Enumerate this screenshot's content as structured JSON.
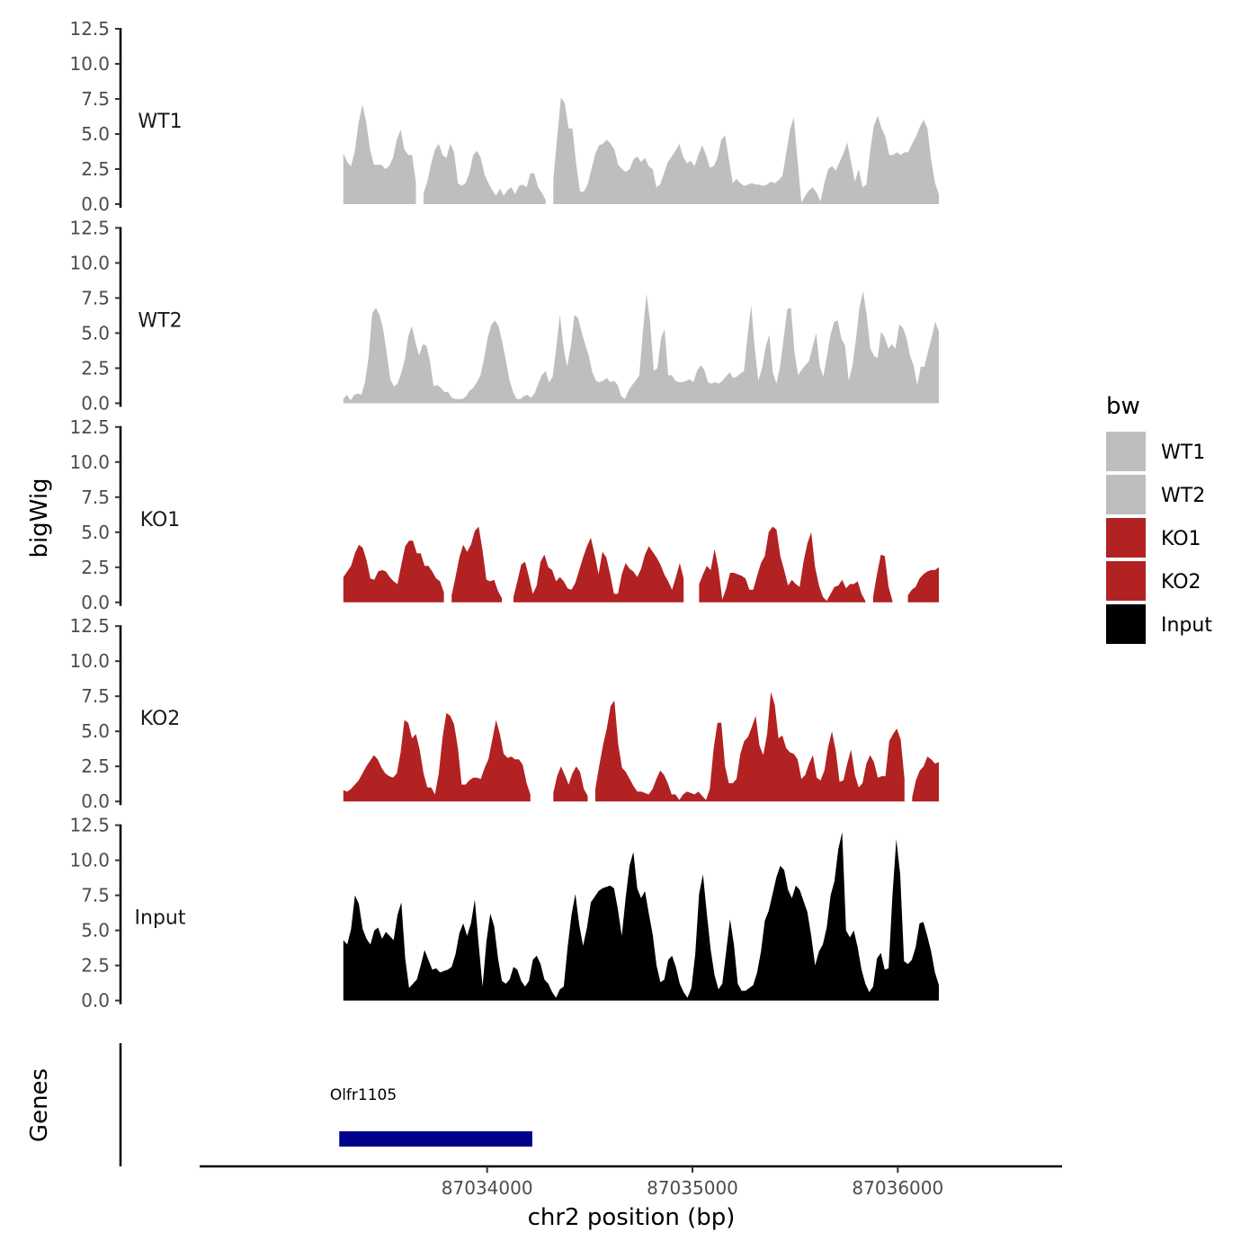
{
  "chart_data": {
    "type": "area",
    "xlabel": "chr2 position (bp)",
    "ylabel": "bigWig",
    "genes_label": "Genes",
    "xlim": [
      87032600,
      87036800
    ],
    "x_ticks": [
      87034000,
      87035000,
      87036000
    ],
    "x_tick_labels": [
      "87034000",
      "87035000",
      "87036000"
    ],
    "ylim": [
      0,
      12.5
    ],
    "y_ticks": [
      0,
      2.5,
      5,
      7.5,
      10,
      12.5
    ],
    "y_tick_labels": [
      "0.0",
      "2.5",
      "5.0",
      "7.5",
      "10.0",
      "12.5"
    ],
    "x_start": 87033300,
    "x_end": 87036200,
    "tracks": [
      {
        "name": "WT1",
        "color": "#bebebe",
        "values": [
          3.6,
          3.0,
          2.7,
          3.8,
          5.8,
          7.1,
          5.8,
          3.9,
          2.8,
          2.8,
          2.8,
          2.5,
          2.7,
          3.3,
          4.6,
          5.3,
          3.9,
          3.5,
          3.5,
          1.5,
          0,
          0.8,
          1.6,
          2.9,
          3.9,
          4.3,
          3.5,
          3.3,
          4.3,
          3.7,
          1.5,
          1.3,
          1.5,
          2.2,
          3.5,
          3.8,
          3.3,
          2.1,
          1.5,
          1.0,
          0.6,
          1.1,
          0.6,
          1.0,
          1.2,
          0.7,
          1.3,
          1.4,
          1.2,
          2.2,
          2.2,
          1.2,
          0.8,
          0.3,
          0,
          1.8,
          4.7,
          7.6,
          7.2,
          5.4,
          5.4,
          2.8,
          0.9,
          0.9,
          1.4,
          2.5,
          3.6,
          4.2,
          4.3,
          4.6,
          4.3,
          3.9,
          2.8,
          2.5,
          2.3,
          2.5,
          3.2,
          3.4,
          3.0,
          3.3,
          2.7,
          2.5,
          1.2,
          1.4,
          2.2,
          3.0,
          3.4,
          3.8,
          4.3,
          3.4,
          2.9,
          3.1,
          2.7,
          3.5,
          4.2,
          3.5,
          2.6,
          2.7,
          3.3,
          4.6,
          4.9,
          3.2,
          1.5,
          1.8,
          1.5,
          1.3,
          1.4,
          1.5,
          1.4,
          1.4,
          1.3,
          1.4,
          1.6,
          1.5,
          1.7,
          2.0,
          3.6,
          5.3,
          6.2,
          3.1,
          0.1,
          0.6,
          1.0,
          1.2,
          0.8,
          0.2,
          1.5,
          2.5,
          2.7,
          2.4,
          3.0,
          3.6,
          4.4,
          3.0,
          1.6,
          2.5,
          1.2,
          1.4,
          3.8,
          5.6,
          6.3,
          5.4,
          4.8,
          3.5,
          3.5,
          3.7,
          3.5,
          3.7,
          3.7,
          4.3,
          4.8,
          5.5,
          6.0,
          5.4,
          3.1,
          1.5,
          0.7
        ]
      },
      {
        "name": "WT2",
        "color": "#bebebe",
        "values": [
          0.3,
          0.6,
          0.2,
          0.6,
          0.7,
          0.6,
          1.5,
          3.3,
          6.4,
          6.8,
          6.3,
          5.3,
          3.6,
          1.7,
          1.2,
          1.4,
          2.1,
          3.1,
          4.8,
          5.5,
          4.3,
          3.4,
          4.2,
          4.1,
          3.0,
          1.2,
          1.3,
          1.1,
          0.8,
          0.8,
          0.4,
          0.3,
          0.3,
          0.3,
          0.5,
          0.9,
          1.1,
          1.5,
          2.0,
          3.2,
          4.7,
          5.6,
          5.9,
          5.5,
          4.4,
          3.1,
          1.7,
          0.8,
          0.3,
          0.3,
          0.5,
          0.6,
          0.4,
          0.7,
          1.4,
          2.0,
          2.3,
          1.5,
          1.9,
          4.0,
          6.3,
          4.0,
          2.6,
          4.0,
          6.3,
          6.1,
          5.1,
          4.2,
          3.4,
          2.2,
          1.6,
          1.5,
          1.6,
          1.8,
          1.5,
          1.6,
          1.3,
          0.5,
          0.3,
          0.9,
          1.3,
          1.6,
          2.0,
          5.1,
          7.8,
          5.8,
          2.3,
          2.5,
          4.6,
          5.3,
          2.0,
          2.0,
          1.6,
          1.5,
          1.5,
          1.6,
          1.7,
          1.5,
          2.3,
          2.7,
          2.4,
          1.5,
          1.4,
          1.5,
          1.4,
          1.6,
          1.9,
          2.2,
          1.8,
          1.9,
          2.1,
          2.3,
          4.8,
          7.0,
          3.9,
          1.6,
          2.5,
          4.0,
          4.9,
          2.2,
          1.4,
          2.6,
          4.6,
          6.7,
          6.8,
          3.6,
          2.0,
          2.4,
          2.7,
          3.0,
          4.0,
          5.0,
          2.6,
          1.9,
          3.4,
          4.9,
          5.8,
          5.9,
          4.6,
          4.1,
          1.6,
          2.6,
          4.5,
          6.8,
          8.0,
          6.3,
          3.9,
          3.4,
          3.2,
          5.1,
          4.7,
          3.9,
          4.2,
          3.9,
          5.6,
          5.4,
          4.7,
          3.4,
          2.7,
          1.3,
          2.6,
          2.6,
          3.7,
          4.7,
          5.8,
          5.1
        ]
      },
      {
        "name": "KO1",
        "color": "#b22222",
        "values": [
          1.8,
          2.2,
          2.6,
          3.5,
          4.1,
          3.9,
          3.0,
          1.7,
          1.6,
          2.2,
          2.3,
          2.2,
          1.8,
          1.5,
          1.3,
          2.7,
          4.0,
          4.4,
          4.4,
          3.5,
          3.5,
          2.6,
          2.6,
          2.2,
          1.7,
          1.5,
          0.7,
          0,
          0.5,
          1.8,
          3.2,
          4.1,
          3.6,
          4.1,
          5.1,
          5.4,
          3.7,
          1.6,
          1.5,
          1.6,
          0.8,
          0.3,
          0,
          0,
          0.4,
          1.5,
          2.7,
          2.9,
          1.8,
          0.6,
          1.2,
          2.9,
          3.4,
          2.5,
          2.3,
          1.5,
          1.8,
          1.5,
          1.0,
          0.9,
          1.4,
          2.3,
          3.2,
          4.0,
          4.6,
          3.4,
          2.0,
          3.6,
          3.2,
          2.0,
          0.6,
          0.6,
          2.0,
          2.8,
          2.4,
          2.2,
          1.8,
          2.4,
          3.4,
          4.0,
          3.6,
          3.2,
          2.7,
          2.0,
          1.5,
          0.9,
          1.8,
          2.8,
          1.7,
          0,
          0,
          0,
          1.3,
          2.0,
          2.6,
          2.3,
          3.8,
          2.4,
          0.2,
          1.0,
          2.1,
          2.1,
          2.0,
          1.9,
          1.7,
          0.9,
          0.9,
          1.9,
          2.8,
          3.3,
          5.0,
          5.4,
          5.2,
          3.3,
          2.3,
          1.2,
          1.6,
          1.3,
          1.1,
          2.9,
          4.2,
          5.0,
          2.5,
          1.2,
          0.4,
          0.1,
          0.6,
          1.1,
          1.2,
          1.6,
          1.0,
          1.3,
          1.3,
          1.5,
          0.6,
          0.1,
          0,
          0.4,
          2.0,
          3.4,
          3.3,
          1.1,
          0.1,
          0,
          0,
          0,
          0.5,
          0.9,
          1.1,
          1.7,
          2.0,
          2.2,
          2.3,
          2.3,
          2.5
        ]
      },
      {
        "name": "KO2",
        "color": "#b22222",
        "values": [
          0.8,
          0.7,
          0.9,
          1.2,
          1.5,
          2.0,
          2.5,
          2.9,
          3.3,
          3.0,
          2.4,
          2.0,
          1.8,
          1.7,
          2.0,
          3.5,
          5.8,
          5.6,
          4.5,
          4.8,
          3.7,
          2.0,
          1.0,
          1.0,
          0.5,
          2.0,
          4.6,
          6.3,
          6.1,
          5.5,
          3.8,
          1.2,
          1.2,
          1.5,
          1.7,
          1.7,
          1.6,
          2.4,
          3.0,
          4.4,
          5.8,
          4.8,
          3.4,
          3.1,
          3.2,
          3.0,
          3.0,
          2.6,
          1.3,
          0.5,
          0,
          0,
          0,
          0,
          0,
          0.6,
          1.8,
          2.5,
          1.9,
          1.2,
          2.0,
          2.5,
          2.1,
          0.9,
          0.4,
          0,
          0.9,
          2.5,
          4.0,
          5.2,
          6.8,
          7.2,
          4.1,
          2.4,
          2.1,
          1.6,
          1.1,
          0.7,
          0.7,
          0.6,
          0.5,
          0.9,
          1.6,
          2.2,
          1.9,
          1.3,
          0.5,
          0.5,
          0.1,
          0.5,
          0.7,
          0.6,
          0.5,
          0.7,
          0.4,
          0.1,
          0.9,
          3.8,
          5.6,
          5.6,
          2.5,
          1.3,
          1.3,
          1.6,
          3.4,
          4.3,
          4.6,
          5.3,
          6.1,
          4.0,
          3.3,
          4.8,
          7.8,
          6.9,
          4.5,
          4.7,
          3.8,
          3.5,
          3.4,
          3.0,
          1.6,
          1.9,
          2.7,
          3.3,
          1.7,
          1.5,
          2.2,
          3.9,
          5.0,
          3.6,
          1.4,
          1.5,
          2.7,
          3.7,
          1.9,
          1.0,
          1.3,
          2.7,
          3.3,
          2.8,
          1.7,
          1.8,
          1.8,
          4.3,
          4.8,
          5.2,
          4.4,
          1.6,
          0,
          0.3,
          1.5,
          2.2,
          2.5,
          3.2,
          3.0,
          2.7,
          2.8
        ]
      },
      {
        "name": "Input",
        "color": "#000000",
        "values": [
          4.3,
          4.0,
          5.1,
          7.5,
          6.9,
          5.1,
          4.4,
          4.0,
          5.0,
          5.2,
          4.4,
          4.9,
          4.6,
          4.3,
          6.1,
          7.0,
          3.0,
          0.9,
          1.2,
          1.5,
          2.5,
          3.6,
          2.9,
          2.2,
          2.3,
          2.0,
          2.1,
          2.2,
          2.4,
          3.3,
          4.8,
          5.5,
          4.6,
          5.5,
          7.2,
          4.0,
          1.0,
          4.2,
          6.2,
          5.3,
          3.0,
          1.4,
          1.2,
          1.5,
          2.4,
          2.2,
          1.4,
          1.0,
          1.4,
          2.9,
          3.2,
          2.6,
          1.5,
          1.2,
          0.6,
          0.2,
          0.8,
          1.0,
          3.8,
          6.1,
          7.6,
          5.4,
          3.9,
          5.2,
          7.0,
          7.4,
          7.8,
          8.0,
          8.1,
          8.2,
          8.0,
          6.5,
          4.6,
          7.3,
          9.6,
          10.6,
          8.0,
          7.3,
          7.8,
          6.2,
          4.7,
          2.5,
          1.3,
          1.5,
          2.9,
          3.2,
          2.4,
          1.2,
          0.6,
          0.2,
          0.9,
          3.3,
          7.6,
          9.0,
          6.2,
          3.6,
          1.8,
          0.8,
          1.2,
          3.5,
          5.8,
          4.0,
          1.2,
          0.7,
          0.7,
          0.9,
          1.1,
          2.0,
          3.5,
          5.7,
          6.4,
          7.6,
          8.8,
          9.6,
          9.3,
          7.9,
          7.3,
          8.2,
          7.9,
          7.1,
          6.3,
          4.6,
          2.5,
          3.5,
          4.0,
          5.2,
          7.5,
          8.5,
          10.8,
          12.0,
          5.0,
          4.5,
          5.0,
          3.8,
          2.2,
          1.2,
          0.6,
          1.0,
          3.0,
          3.4,
          2.2,
          2.3,
          7.5,
          11.5,
          9.0,
          2.8,
          2.6,
          2.9,
          3.8,
          5.5,
          5.6,
          4.6,
          3.5,
          2.0,
          1.1
        ]
      }
    ],
    "legend": {
      "title": "bw",
      "position": "right",
      "entries": [
        {
          "label": "WT1",
          "color": "#bebebe"
        },
        {
          "label": "WT2",
          "color": "#bebebe"
        },
        {
          "label": "KO1",
          "color": "#b22222"
        },
        {
          "label": "KO2",
          "color": "#b22222"
        },
        {
          "label": "Input",
          "color": "#000000"
        }
      ]
    },
    "genes": [
      {
        "name": "Olfr1105",
        "start": 87033280,
        "end": 87034220,
        "color": "#00008b"
      }
    ]
  }
}
